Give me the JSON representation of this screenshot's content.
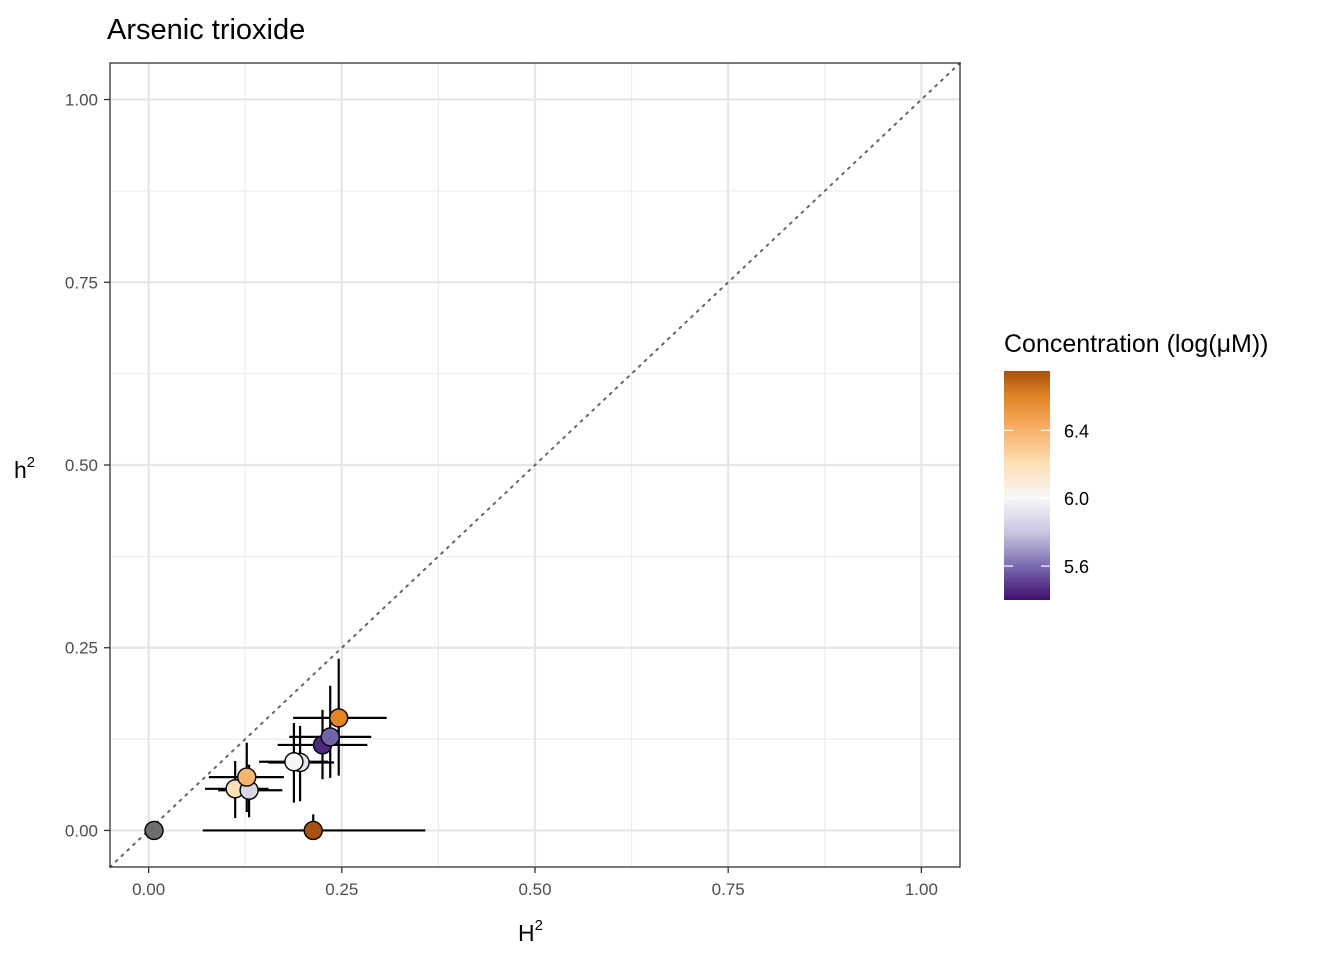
{
  "chart_data": {
    "type": "scatter",
    "title": "Arsenic trioxide",
    "xlabel": "H",
    "xlabel_superscript": "2",
    "ylabel": "h",
    "ylabel_superscript": "2",
    "xlim": [
      -0.05,
      1.05
    ],
    "ylim": [
      -0.05,
      1.05
    ],
    "x_ticks": [
      0.0,
      0.25,
      0.5,
      0.75,
      1.0
    ],
    "x_tick_labels": [
      "0.00",
      "0.25",
      "0.50",
      "0.75",
      "1.00"
    ],
    "y_ticks": [
      0.0,
      0.25,
      0.5,
      0.75,
      1.0
    ],
    "y_tick_labels": [
      "0.00",
      "0.25",
      "0.50",
      "0.75",
      "1.00"
    ],
    "grid": true,
    "reference_line": {
      "slope": 1,
      "intercept": 0,
      "style": "dotted",
      "color": "#666666"
    },
    "legend": {
      "title": "Concentration (log(μM))",
      "type": "colorbar",
      "placement": "right",
      "range": [
        5.4,
        6.75
      ],
      "breaks": [
        6.4,
        6.0,
        5.6
      ],
      "break_labels": [
        "6.4",
        "6.0",
        "5.6"
      ],
      "gradient": [
        {
          "value": 5.4,
          "color": "#3f0e6e"
        },
        {
          "value": 5.6,
          "color": "#7b6bb0"
        },
        {
          "value": 5.8,
          "color": "#c9c6e0"
        },
        {
          "value": 6.0,
          "color": "#f7f7f7"
        },
        {
          "value": 6.2,
          "color": "#fde0b5"
        },
        {
          "value": 6.45,
          "color": "#f6a65a"
        },
        {
          "value": 6.6,
          "color": "#e08424"
        },
        {
          "value": 6.75,
          "color": "#a9500e"
        }
      ]
    },
    "points": [
      {
        "x": 0.007,
        "y": 0.0,
        "x_lo": 0.007,
        "x_hi": 0.007,
        "y_lo": 0.0,
        "y_hi": 0.0,
        "color": "#6e6e6e"
      },
      {
        "x": 0.213,
        "y": 0.0,
        "x_lo": 0.07,
        "x_hi": 0.358,
        "y_lo": 0.0,
        "y_hi": 0.022,
        "color": "#a9500e"
      },
      {
        "x": 0.112,
        "y": 0.057,
        "x_lo": 0.073,
        "x_hi": 0.155,
        "y_lo": 0.017,
        "y_hi": 0.095,
        "color": "#fde0b5"
      },
      {
        "x": 0.13,
        "y": 0.055,
        "x_lo": 0.09,
        "x_hi": 0.173,
        "y_lo": 0.018,
        "y_hi": 0.09,
        "color": "#d8d6e8"
      },
      {
        "x": 0.127,
        "y": 0.073,
        "x_lo": 0.078,
        "x_hi": 0.175,
        "y_lo": 0.025,
        "y_hi": 0.12,
        "color": "#f8b56d"
      },
      {
        "x": 0.196,
        "y": 0.093,
        "x_lo": 0.155,
        "x_hi": 0.24,
        "y_lo": 0.04,
        "y_hi": 0.143,
        "color": "#e4e3ef"
      },
      {
        "x": 0.188,
        "y": 0.094,
        "x_lo": 0.143,
        "x_hi": 0.232,
        "y_lo": 0.038,
        "y_hi": 0.147,
        "color": "#f6f6f8"
      },
      {
        "x": 0.225,
        "y": 0.117,
        "x_lo": 0.167,
        "x_hi": 0.283,
        "y_lo": 0.07,
        "y_hi": 0.165,
        "color": "#4b2a7f"
      },
      {
        "x": 0.235,
        "y": 0.128,
        "x_lo": 0.182,
        "x_hi": 0.288,
        "y_lo": 0.072,
        "y_hi": 0.198,
        "color": "#7264a8"
      },
      {
        "x": 0.246,
        "y": 0.154,
        "x_lo": 0.187,
        "x_hi": 0.308,
        "y_lo": 0.075,
        "y_hi": 0.235,
        "color": "#e08424"
      }
    ]
  }
}
